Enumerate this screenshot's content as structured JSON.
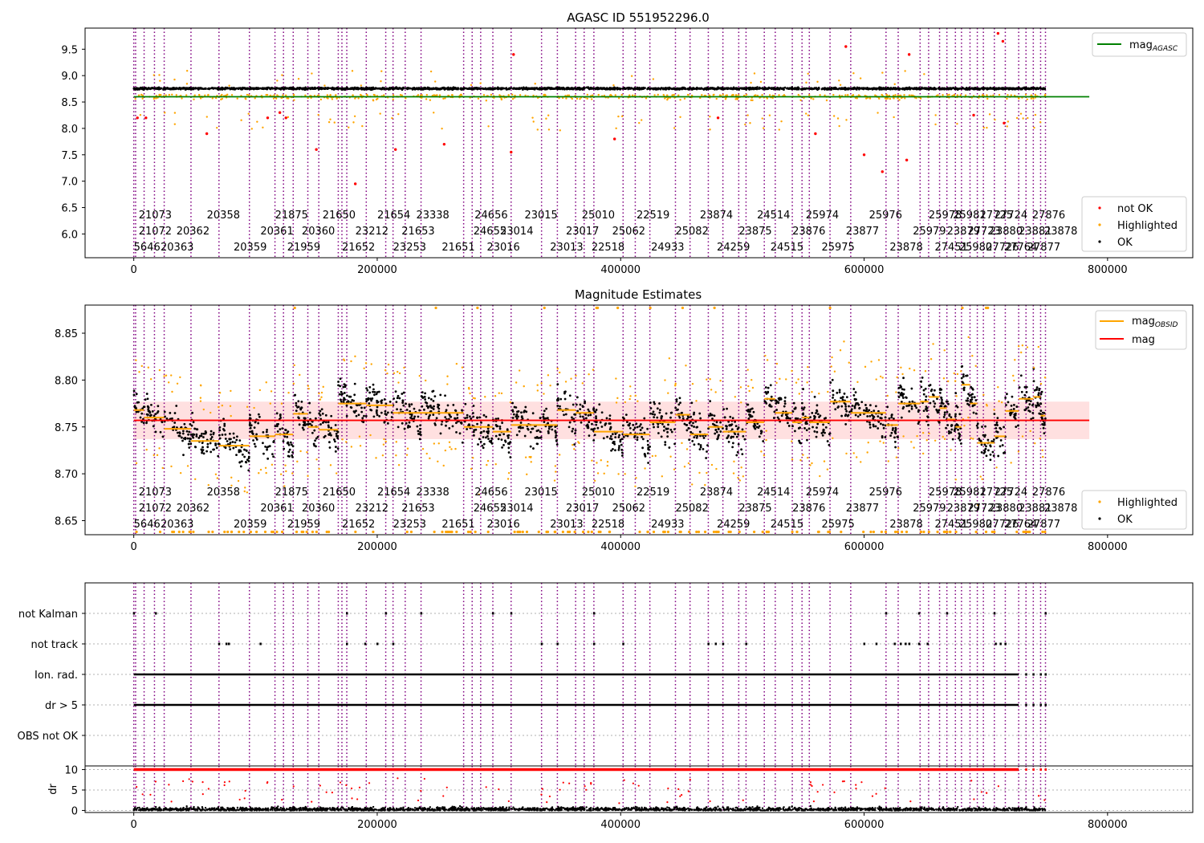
{
  "chart_data": [
    {
      "type": "scatter",
      "title": "AGASC ID 551952296.0",
      "xlim": [
        -40000,
        870000
      ],
      "ylim": [
        5.55,
        9.9
      ],
      "xticks": [
        0,
        200000,
        400000,
        600000,
        800000
      ],
      "yticks": [
        6.0,
        6.5,
        7.0,
        7.5,
        8.0,
        8.5,
        9.0,
        9.5
      ],
      "series": [
        {
          "name": "mag_AGASC",
          "kind": "hline",
          "y": 8.6,
          "xrange": [
            0,
            785000
          ],
          "color": "#008000"
        },
        {
          "name": "not OK",
          "color": "#ff0000",
          "x": [
            3000,
            10000,
            60000,
            110000,
            120000,
            125000,
            150000,
            182000,
            215000,
            255000,
            310000,
            312000,
            395000,
            480000,
            560000,
            585000,
            600000,
            615000,
            635000,
            637000,
            690000,
            710000,
            714000,
            715000
          ],
          "y": [
            8.2,
            8.2,
            7.9,
            8.2,
            8.3,
            8.2,
            7.6,
            6.95,
            7.6,
            7.7,
            7.55,
            9.4,
            7.8,
            8.2,
            7.9,
            9.55,
            7.5,
            7.18,
            7.4,
            9.4,
            8.25,
            9.8,
            9.65,
            8.1
          ]
        },
        {
          "name": "Highlighted",
          "color": "#ffa500",
          "density": "scattered around 8.5–8.7 across x 0–745000"
        },
        {
          "name": "OK",
          "color": "#000000",
          "density": "dense band at ~8.73–8.80 across x 0–745000"
        }
      ],
      "obsid_labels": {
        "row1": [
          {
            "x": 4000,
            "t": "21073"
          },
          {
            "x": 60000,
            "t": "20358"
          },
          {
            "x": 116000,
            "t": "21875"
          },
          {
            "x": 155000,
            "t": "21650"
          },
          {
            "x": 200000,
            "t": "21654"
          },
          {
            "x": 232000,
            "t": "23338"
          },
          {
            "x": 280000,
            "t": "24656"
          },
          {
            "x": 321000,
            "t": "23015"
          },
          {
            "x": 368000,
            "t": "25010"
          },
          {
            "x": 413000,
            "t": "22519"
          },
          {
            "x": 465000,
            "t": "23874"
          },
          {
            "x": 512000,
            "t": "24514"
          },
          {
            "x": 552000,
            "t": "25974"
          },
          {
            "x": 604000,
            "t": "25976"
          },
          {
            "x": 653000,
            "t": "25978"
          },
          {
            "x": 673000,
            "t": "25981"
          },
          {
            "x": 695000,
            "t": "27725"
          },
          {
            "x": 707000,
            "t": "27724"
          },
          {
            "x": 738000,
            "t": "27876"
          }
        ],
        "row2": [
          {
            "x": 4000,
            "t": "21072"
          },
          {
            "x": 35000,
            "t": "20362"
          },
          {
            "x": 104000,
            "t": "20361"
          },
          {
            "x": 138000,
            "t": "20360"
          },
          {
            "x": 182000,
            "t": "23212"
          },
          {
            "x": 220000,
            "t": "21653"
          },
          {
            "x": 279000,
            "t": "24655"
          },
          {
            "x": 301000,
            "t": "23014"
          },
          {
            "x": 355000,
            "t": "23017"
          },
          {
            "x": 393000,
            "t": "25062"
          },
          {
            "x": 445000,
            "t": "25082"
          },
          {
            "x": 497000,
            "t": "23875"
          },
          {
            "x": 541000,
            "t": "23876"
          },
          {
            "x": 585000,
            "t": "23877"
          },
          {
            "x": 640000,
            "t": "25979"
          },
          {
            "x": 668000,
            "t": "23879"
          },
          {
            "x": 685000,
            "t": "27723"
          },
          {
            "x": 703000,
            "t": "23880"
          },
          {
            "x": 727000,
            "t": "23881"
          },
          {
            "x": 748000,
            "t": "23878"
          }
        ],
        "row3": [
          {
            "x": 0,
            "t": "5646"
          },
          {
            "x": 22000,
            "t": "20363"
          },
          {
            "x": 82000,
            "t": "20359"
          },
          {
            "x": 126000,
            "t": "21959"
          },
          {
            "x": 171000,
            "t": "21652"
          },
          {
            "x": 213000,
            "t": "23253"
          },
          {
            "x": 253000,
            "t": "21651"
          },
          {
            "x": 290000,
            "t": "23016"
          },
          {
            "x": 342000,
            "t": "23013"
          },
          {
            "x": 376000,
            "t": "22518"
          },
          {
            "x": 425000,
            "t": "24933"
          },
          {
            "x": 479000,
            "t": "24259"
          },
          {
            "x": 523000,
            "t": "24515"
          },
          {
            "x": 565000,
            "t": "25975"
          },
          {
            "x": 621000,
            "t": "23878"
          },
          {
            "x": 658000,
            "t": "27451"
          },
          {
            "x": 678000,
            "t": "25980"
          },
          {
            "x": 700000,
            "t": "27726"
          },
          {
            "x": 715000,
            "t": "27764"
          },
          {
            "x": 734000,
            "t": "27877"
          }
        ]
      },
      "obsid_lines_x": [
        0,
        1500,
        8500,
        17000,
        25000,
        47000,
        70000,
        95000,
        116000,
        123000,
        131000,
        143000,
        152000,
        168000,
        171000,
        175000,
        191000,
        207000,
        213000,
        223000,
        236000,
        271000,
        278000,
        285000,
        295000,
        310000,
        335000,
        348000,
        363000,
        370000,
        378000,
        402000,
        412000,
        424000,
        445000,
        457000,
        472000,
        484000,
        497000,
        503000,
        518000,
        527000,
        541000,
        549000,
        555000,
        572000,
        589000,
        618000,
        628000,
        646000,
        653000,
        662000,
        668000,
        675000,
        680000,
        687000,
        693000,
        698000,
        707000,
        716000,
        727000,
        733000,
        739000,
        745000,
        749000
      ],
      "legend": {
        "top": [
          "mag_AGASC"
        ],
        "bottom": [
          "not OK",
          "Highlighted",
          "OK"
        ]
      }
    },
    {
      "type": "scatter",
      "title": "Magnitude Estimates",
      "xlim": [
        -40000,
        870000
      ],
      "ylim": [
        8.635,
        8.88
      ],
      "xticks": [
        0,
        200000,
        400000,
        600000,
        800000
      ],
      "yticks": [
        8.65,
        8.7,
        8.75,
        8.8,
        8.85
      ],
      "series": [
        {
          "name": "mag",
          "kind": "hline",
          "y": 8.757,
          "band": [
            8.737,
            8.777
          ],
          "xrange": [
            0,
            785000
          ],
          "color": "#ff0000"
        },
        {
          "name": "mag_OBSID",
          "kind": "segments",
          "color": "#ffa500",
          "segments": [
            [
              0,
              8500,
              8.768
            ],
            [
              8500,
              25000,
              8.76
            ],
            [
              25000,
              47000,
              8.748
            ],
            [
              47000,
              70000,
              8.735
            ],
            [
              70000,
              95000,
              8.73
            ],
            [
              95000,
              116000,
              8.74
            ],
            [
              116000,
              131000,
              8.742
            ],
            [
              131000,
              143000,
              8.764
            ],
            [
              143000,
              152000,
              8.75
            ],
            [
              152000,
              168000,
              8.747
            ],
            [
              168000,
              191000,
              8.775
            ],
            [
              191000,
              213000,
              8.773
            ],
            [
              213000,
              236000,
              8.765
            ],
            [
              236000,
              271000,
              8.765
            ],
            [
              271000,
              295000,
              8.75
            ],
            [
              295000,
              310000,
              8.745
            ],
            [
              310000,
              335000,
              8.752
            ],
            [
              335000,
              348000,
              8.752
            ],
            [
              348000,
              363000,
              8.768
            ],
            [
              363000,
              378000,
              8.765
            ],
            [
              378000,
              402000,
              8.745
            ],
            [
              402000,
              424000,
              8.742
            ],
            [
              424000,
              445000,
              8.755
            ],
            [
              445000,
              457000,
              8.763
            ],
            [
              457000,
              472000,
              8.742
            ],
            [
              472000,
              484000,
              8.75
            ],
            [
              484000,
              503000,
              8.745
            ],
            [
              503000,
              518000,
              8.755
            ],
            [
              518000,
              527000,
              8.78
            ],
            [
              527000,
              541000,
              8.765
            ],
            [
              541000,
              549000,
              8.755
            ],
            [
              549000,
              555000,
              8.76
            ],
            [
              555000,
              572000,
              8.755
            ],
            [
              572000,
              589000,
              8.777
            ],
            [
              589000,
              618000,
              8.765
            ],
            [
              618000,
              628000,
              8.752
            ],
            [
              628000,
              646000,
              8.775
            ],
            [
              646000,
              653000,
              8.777
            ],
            [
              653000,
              662000,
              8.782
            ],
            [
              662000,
              668000,
              8.77
            ],
            [
              668000,
              675000,
              8.758
            ],
            [
              675000,
              680000,
              8.75
            ],
            [
              680000,
              687000,
              8.795
            ],
            [
              687000,
              693000,
              8.775
            ],
            [
              693000,
              707000,
              8.733
            ],
            [
              707000,
              716000,
              8.74
            ],
            [
              716000,
              727000,
              8.767
            ],
            [
              727000,
              739000,
              8.78
            ],
            [
              739000,
              745000,
              8.782
            ],
            [
              745000,
              749000,
              8.762
            ]
          ]
        },
        {
          "name": "Highlighted",
          "color": "#ffa500",
          "density": "scattered points and clipped markers at ~8.638 and ~8.877"
        },
        {
          "name": "OK",
          "color": "#000000",
          "density": "dense per-observation blocks between ~8.69 and ~8.86"
        }
      ],
      "legend": {
        "top": [
          "mag_OBSID",
          "mag"
        ],
        "bottom": [
          "Highlighted",
          "OK"
        ]
      }
    },
    {
      "type": "scatter",
      "title": "",
      "xlim": [
        -40000,
        870000
      ],
      "categories": [
        "not Kalman",
        "not track",
        "Ion. rad.",
        "dr > 5",
        "OBS not OK"
      ],
      "series": [
        {
          "name": "not Kalman",
          "x": [
            0,
            18000,
            175000,
            207000,
            236000,
            295000,
            310000,
            378000,
            618000,
            645000,
            668000,
            707000,
            749000
          ]
        },
        {
          "name": "not track",
          "x": [
            70000,
            76000,
            78000,
            104000,
            175000,
            190000,
            200000,
            213000,
            335000,
            348000,
            378000,
            402000,
            472000,
            478000,
            484000,
            503000,
            600000,
            610000,
            625000,
            630000,
            634000,
            637000,
            645000,
            652000,
            708000,
            712000,
            716000
          ]
        },
        {
          "name": "Ion. rad.",
          "xrange": [
            0,
            727000
          ],
          "extra": [
            733000,
            739000,
            745000,
            749000
          ]
        },
        {
          "name": "dr > 5",
          "xrange": [
            0,
            727000
          ],
          "extra": [
            733000,
            739000,
            745000,
            749000
          ]
        },
        {
          "name": "OBS not OK",
          "x": []
        }
      ]
    },
    {
      "type": "scatter",
      "title": "",
      "ylabel": "dr",
      "xlim": [
        -40000,
        870000
      ],
      "ylim": [
        -0.5,
        10.5
      ],
      "yticks": [
        0,
        5,
        10
      ],
      "xticks": [
        0,
        200000,
        400000,
        600000,
        800000
      ],
      "series": [
        {
          "name": "dr > 5 (clipped)",
          "color": "#ff0000",
          "y": 10,
          "xrange": [
            0,
            727000
          ]
        },
        {
          "name": "red outliers",
          "color": "#ff0000",
          "density": "scattered 1.5–8"
        },
        {
          "name": "OK",
          "color": "#000000",
          "density": "dense band 0–1.5"
        }
      ]
    }
  ]
}
